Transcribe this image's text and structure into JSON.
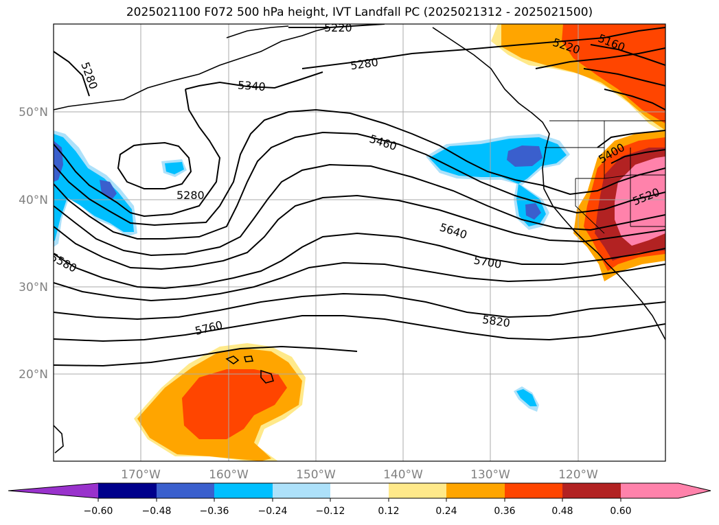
{
  "title": "2025021100 F072 500 hPa height, IVT Landfall PC (2025021312 - 2025021500)",
  "map": {
    "lat_labels": [
      "50°N",
      "40°N",
      "30°N",
      "20°N"
    ],
    "lon_labels": [
      "170°W",
      "160°W",
      "150°W",
      "140°W",
      "130°W",
      "120°W"
    ],
    "contour_labels": [
      "5220",
      "5280",
      "5280",
      "5340",
      "5280",
      "5460",
      "5580",
      "5640",
      "5700",
      "5760",
      "5820",
      "5220",
      "5160",
      "5400",
      "5520"
    ]
  },
  "colorbar": {
    "ticks": [
      "−0.60",
      "−0.48",
      "−0.36",
      "−0.24",
      "−0.12",
      "0.12",
      "0.24",
      "0.36",
      "0.48",
      "0.60"
    ],
    "colors": [
      "#9932CC",
      "#00008B",
      "#3A5FCD",
      "#00BFFF",
      "#ADE1FA",
      "#FFFFFF",
      "#FFE98A",
      "#FFA500",
      "#FF4500",
      "#B22222",
      "#FF82AB"
    ]
  }
}
